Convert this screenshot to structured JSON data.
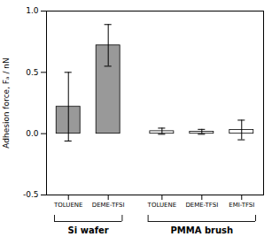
{
  "chart_data": {
    "type": "bar",
    "categories": [
      "TOLUENE",
      "DEME-TFSI",
      "TOLUENE",
      "DEME-TFSI",
      "EMI-TFSI"
    ],
    "values": [
      0.22,
      0.72,
      0.02,
      0.015,
      0.03
    ],
    "errors": [
      0.28,
      0.17,
      0.025,
      0.02,
      0.08
    ],
    "colors": [
      "#999999",
      "#999999",
      "#ffffff",
      "#ffffff",
      "#ffffff"
    ],
    "ylabel": "Adhesion force, Fₐ / nN",
    "ylim": [
      -0.5,
      1.0
    ],
    "yticks": [
      -0.5,
      {
        "value": 0,
        "label": "0.0"
      },
      0.5,
      {
        "value": 1,
        "label": "1.0"
      }
    ],
    "groups": [
      {
        "label": "Si wafer",
        "count": 2
      },
      {
        "label": "PMMA brush",
        "count": 3
      }
    ]
  }
}
